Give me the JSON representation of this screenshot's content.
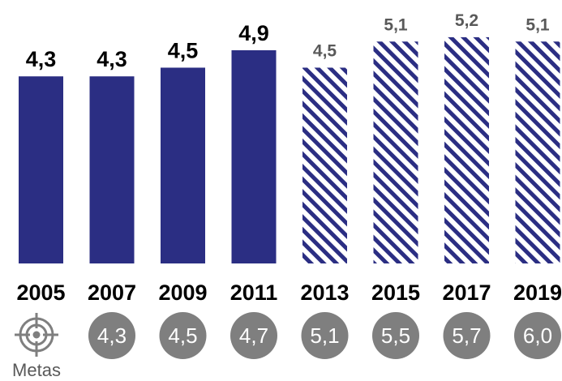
{
  "colors": {
    "bar": "#2b2e83",
    "hatch_stripe": "#2b2e83",
    "hatch_bg": "#ffffff",
    "goal_circle": "#7f7f7f",
    "goal_text": "#ffffff",
    "solid_label": "#000000",
    "hatch_label": "#595959"
  },
  "metas_label": "Metas",
  "metas_icon": "target-icon",
  "chart_data": {
    "type": "bar",
    "categories": [
      "2005",
      "2007",
      "2009",
      "2011",
      "2013",
      "2015",
      "2017",
      "2019"
    ],
    "values": [
      4.3,
      4.3,
      4.5,
      4.9,
      4.5,
      5.1,
      5.2,
      5.1
    ],
    "value_labels": [
      "4,3",
      "4,3",
      "4,5",
      "4,9",
      "4,5",
      "5,1",
      "5,2",
      "5,1"
    ],
    "fill_style": [
      "solid",
      "solid",
      "solid",
      "solid",
      "hatched",
      "hatched",
      "hatched",
      "hatched"
    ],
    "goals": [
      "4,3",
      "4,5",
      "4,7",
      "5,1",
      "5,5",
      "5,7",
      "6,0"
    ],
    "title": "",
    "xlabel": "",
    "ylabel": "",
    "ylim": [
      0,
      5.5
    ],
    "grid": false,
    "legend": "none"
  }
}
